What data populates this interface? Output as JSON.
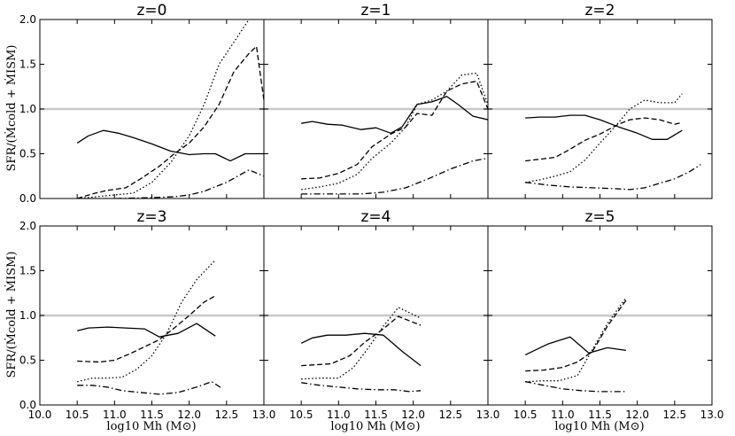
{
  "figure": {
    "ylabel": "SFR/(Ṁcold + ṀISM)",
    "xlabel": "log10 Mh (M⊙)",
    "ref_line": 1.0,
    "ref_color": "#c8c8c8",
    "line_color": "#000000"
  },
  "chart_data": [
    {
      "type": "line",
      "title": "z=0",
      "xlim": [
        10.0,
        13.0
      ],
      "ylim": [
        0.0,
        2.0
      ],
      "grid": false,
      "xticks": [
        "10.0",
        "10.5",
        "11.0",
        "11.5",
        "12.0",
        "12.5",
        "13.0"
      ],
      "yticks": [
        "0.0",
        "0.5",
        "1.0",
        "1.5",
        "2.0"
      ],
      "series": [
        {
          "style": "solid",
          "x": [
            10.5,
            10.65,
            10.85,
            11.05,
            11.25,
            11.5,
            11.75,
            12.0,
            12.2,
            12.35,
            12.55,
            12.75,
            13.0
          ],
          "y": [
            0.62,
            0.7,
            0.76,
            0.73,
            0.68,
            0.61,
            0.53,
            0.49,
            0.5,
            0.5,
            0.42,
            0.5,
            0.5
          ]
        },
        {
          "style": "dashed",
          "x": [
            10.5,
            10.7,
            10.9,
            11.15,
            11.35,
            11.6,
            11.8,
            12.0,
            12.2,
            12.4,
            12.6,
            12.8,
            12.9,
            13.0
          ],
          "y": [
            0.0,
            0.05,
            0.09,
            0.12,
            0.22,
            0.36,
            0.5,
            0.62,
            0.8,
            1.05,
            1.42,
            1.62,
            1.7,
            1.1
          ]
        },
        {
          "style": "dotted",
          "x": [
            10.5,
            10.75,
            11.0,
            11.25,
            11.5,
            11.75,
            12.0,
            12.2,
            12.4,
            12.6,
            12.8
          ],
          "y": [
            0.0,
            0.02,
            0.04,
            0.06,
            0.18,
            0.4,
            0.7,
            1.05,
            1.5,
            1.75,
            2.0
          ]
        },
        {
          "style": "dashdot",
          "x": [
            10.5,
            11.0,
            11.5,
            11.8,
            12.0,
            12.2,
            12.5,
            12.8,
            13.0
          ],
          "y": [
            0.0,
            0.0,
            0.01,
            0.02,
            0.04,
            0.08,
            0.18,
            0.32,
            0.25
          ]
        }
      ]
    },
    {
      "type": "line",
      "title": "z=1",
      "xlim": [
        10.0,
        13.0
      ],
      "ylim": [
        0.0,
        2.0
      ],
      "grid": false,
      "xticks": [
        "10.0",
        "10.5",
        "11.0",
        "11.5",
        "12.0",
        "12.5",
        "13.0"
      ],
      "yticks": [
        "0.0",
        "0.5",
        "1.0",
        "1.5",
        "2.0"
      ],
      "series": [
        {
          "style": "solid",
          "x": [
            10.5,
            10.65,
            10.85,
            11.05,
            11.3,
            11.5,
            11.7,
            11.85,
            12.05,
            12.25,
            12.45,
            12.6,
            12.8,
            13.0
          ],
          "y": [
            0.84,
            0.86,
            0.83,
            0.82,
            0.77,
            0.79,
            0.73,
            0.8,
            1.05,
            1.08,
            1.14,
            1.05,
            0.92,
            0.88
          ]
        },
        {
          "style": "dashed",
          "x": [
            10.5,
            10.75,
            11.0,
            11.25,
            11.45,
            11.7,
            11.9,
            12.05,
            12.25,
            12.45,
            12.65,
            12.85,
            13.0
          ],
          "y": [
            0.22,
            0.23,
            0.28,
            0.38,
            0.58,
            0.72,
            0.8,
            0.95,
            0.93,
            1.2,
            1.28,
            1.31,
            1.0
          ]
        },
        {
          "style": "dotted",
          "x": [
            10.5,
            10.75,
            11.0,
            11.25,
            11.45,
            11.7,
            11.9,
            12.05,
            12.25,
            12.45,
            12.65,
            12.85,
            13.0
          ],
          "y": [
            0.1,
            0.13,
            0.17,
            0.27,
            0.45,
            0.62,
            0.8,
            1.05,
            1.1,
            1.2,
            1.38,
            1.4,
            1.05
          ]
        },
        {
          "style": "dashdot",
          "x": [
            10.5,
            10.75,
            11.0,
            11.3,
            11.6,
            11.9,
            12.2,
            12.5,
            12.8,
            13.0
          ],
          "y": [
            0.05,
            0.05,
            0.05,
            0.05,
            0.07,
            0.12,
            0.22,
            0.33,
            0.42,
            0.45
          ]
        }
      ]
    },
    {
      "type": "line",
      "title": "z=2",
      "xlim": [
        10.0,
        13.0
      ],
      "ylim": [
        0.0,
        2.0
      ],
      "grid": false,
      "xticks": [
        "10.0",
        "10.5",
        "11.0",
        "11.5",
        "12.0",
        "12.5",
        "13.0"
      ],
      "yticks": [
        "0.0",
        "0.5",
        "1.0",
        "1.5",
        "2.0"
      ],
      "series": [
        {
          "style": "solid",
          "x": [
            10.5,
            10.7,
            10.9,
            11.1,
            11.3,
            11.5,
            11.75,
            12.0,
            12.2,
            12.4,
            12.6
          ],
          "y": [
            0.9,
            0.91,
            0.91,
            0.93,
            0.93,
            0.88,
            0.8,
            0.73,
            0.66,
            0.66,
            0.76
          ]
        },
        {
          "style": "dashed",
          "x": [
            10.5,
            10.7,
            10.9,
            11.1,
            11.3,
            11.5,
            11.75,
            11.9,
            12.1,
            12.3,
            12.5,
            12.6
          ],
          "y": [
            0.42,
            0.44,
            0.46,
            0.55,
            0.65,
            0.72,
            0.83,
            0.88,
            0.9,
            0.88,
            0.83,
            0.85
          ]
        },
        {
          "style": "dotted",
          "x": [
            10.5,
            10.7,
            10.9,
            11.1,
            11.3,
            11.5,
            11.7,
            11.9,
            12.1,
            12.3,
            12.5,
            12.6
          ],
          "y": [
            0.18,
            0.21,
            0.25,
            0.3,
            0.43,
            0.62,
            0.8,
            1.0,
            1.1,
            1.07,
            1.07,
            1.17
          ]
        },
        {
          "style": "dashdot",
          "x": [
            10.5,
            10.8,
            11.1,
            11.4,
            11.7,
            11.9,
            12.1,
            12.3,
            12.5,
            12.7,
            12.85
          ],
          "y": [
            0.18,
            0.15,
            0.13,
            0.12,
            0.11,
            0.1,
            0.12,
            0.17,
            0.22,
            0.3,
            0.38
          ]
        }
      ]
    },
    {
      "type": "line",
      "title": "z=3",
      "xlim": [
        10.0,
        13.0
      ],
      "ylim": [
        0.0,
        2.0
      ],
      "grid": false,
      "xticks": [
        "10.0",
        "10.5",
        "11.0",
        "11.5",
        "12.0",
        "12.5",
        "13.0"
      ],
      "yticks": [
        "0.0",
        "0.5",
        "1.0",
        "1.5",
        "2.0"
      ],
      "series": [
        {
          "style": "solid",
          "x": [
            10.5,
            10.65,
            10.9,
            11.15,
            11.4,
            11.6,
            11.85,
            12.1,
            12.35
          ],
          "y": [
            0.83,
            0.86,
            0.87,
            0.86,
            0.85,
            0.76,
            0.8,
            0.91,
            0.77
          ]
        },
        {
          "style": "dashed",
          "x": [
            10.5,
            10.8,
            11.0,
            11.2,
            11.4,
            11.6,
            11.8,
            12.0,
            12.2,
            12.35
          ],
          "y": [
            0.49,
            0.48,
            0.5,
            0.57,
            0.65,
            0.73,
            0.86,
            1.0,
            1.15,
            1.22
          ]
        },
        {
          "style": "dotted",
          "x": [
            10.5,
            10.7,
            10.9,
            11.1,
            11.3,
            11.5,
            11.7,
            11.9,
            12.1,
            12.35
          ],
          "y": [
            0.26,
            0.3,
            0.3,
            0.31,
            0.4,
            0.55,
            0.8,
            1.15,
            1.4,
            1.62
          ]
        },
        {
          "style": "dashdot",
          "x": [
            10.5,
            10.7,
            10.9,
            11.1,
            11.35,
            11.6,
            11.85,
            12.1,
            12.3,
            12.45
          ],
          "y": [
            0.22,
            0.22,
            0.2,
            0.16,
            0.14,
            0.12,
            0.14,
            0.2,
            0.26,
            0.18
          ]
        }
      ]
    },
    {
      "type": "line",
      "title": "z=4",
      "xlim": [
        10.0,
        13.0
      ],
      "ylim": [
        0.0,
        2.0
      ],
      "grid": false,
      "xticks": [
        "10.0",
        "10.5",
        "11.0",
        "11.5",
        "12.0",
        "12.5",
        "13.0"
      ],
      "yticks": [
        "0.0",
        "0.5",
        "1.0",
        "1.5",
        "2.0"
      ],
      "series": [
        {
          "style": "solid",
          "x": [
            10.5,
            10.65,
            10.85,
            11.1,
            11.35,
            11.6,
            11.85,
            12.1
          ],
          "y": [
            0.69,
            0.75,
            0.78,
            0.78,
            0.8,
            0.78,
            0.6,
            0.44
          ]
        },
        {
          "style": "dashed",
          "x": [
            10.5,
            10.7,
            10.9,
            11.15,
            11.35,
            11.6,
            11.8,
            12.1
          ],
          "y": [
            0.44,
            0.45,
            0.46,
            0.55,
            0.7,
            0.85,
            0.99,
            0.89
          ]
        },
        {
          "style": "dotted",
          "x": [
            10.5,
            10.75,
            11.0,
            11.2,
            11.4,
            11.6,
            11.8,
            12.1
          ],
          "y": [
            0.29,
            0.3,
            0.3,
            0.42,
            0.64,
            0.88,
            1.09,
            0.97
          ]
        },
        {
          "style": "dashdot",
          "x": [
            10.5,
            10.75,
            11.0,
            11.25,
            11.5,
            11.75,
            11.95,
            12.1
          ],
          "y": [
            0.25,
            0.22,
            0.2,
            0.18,
            0.17,
            0.17,
            0.15,
            0.16
          ]
        }
      ]
    },
    {
      "type": "line",
      "title": "z=5",
      "xlim": [
        10.0,
        13.0
      ],
      "ylim": [
        0.0,
        2.0
      ],
      "grid": false,
      "xticks": [
        "10.0",
        "10.5",
        "11.0",
        "11.5",
        "12.0",
        "12.5",
        "13.0"
      ],
      "yticks": [
        "0.0",
        "0.5",
        "1.0",
        "1.5",
        "2.0"
      ],
      "series": [
        {
          "style": "solid",
          "x": [
            10.5,
            10.8,
            11.1,
            11.35,
            11.6,
            11.85
          ],
          "y": [
            0.56,
            0.68,
            0.76,
            0.58,
            0.64,
            0.61
          ]
        },
        {
          "style": "dashed",
          "x": [
            10.5,
            10.75,
            11.0,
            11.2,
            11.4,
            11.6,
            11.85
          ],
          "y": [
            0.38,
            0.39,
            0.42,
            0.48,
            0.6,
            0.88,
            1.17
          ]
        },
        {
          "style": "dotted",
          "x": [
            10.5,
            10.75,
            10.95,
            11.2,
            11.4,
            11.6,
            11.85
          ],
          "y": [
            0.26,
            0.27,
            0.27,
            0.33,
            0.62,
            0.91,
            1.2
          ]
        },
        {
          "style": "dashdot",
          "x": [
            10.5,
            10.75,
            11.0,
            11.25,
            11.5,
            11.85
          ],
          "y": [
            0.26,
            0.22,
            0.18,
            0.16,
            0.15,
            0.15
          ]
        }
      ]
    }
  ]
}
